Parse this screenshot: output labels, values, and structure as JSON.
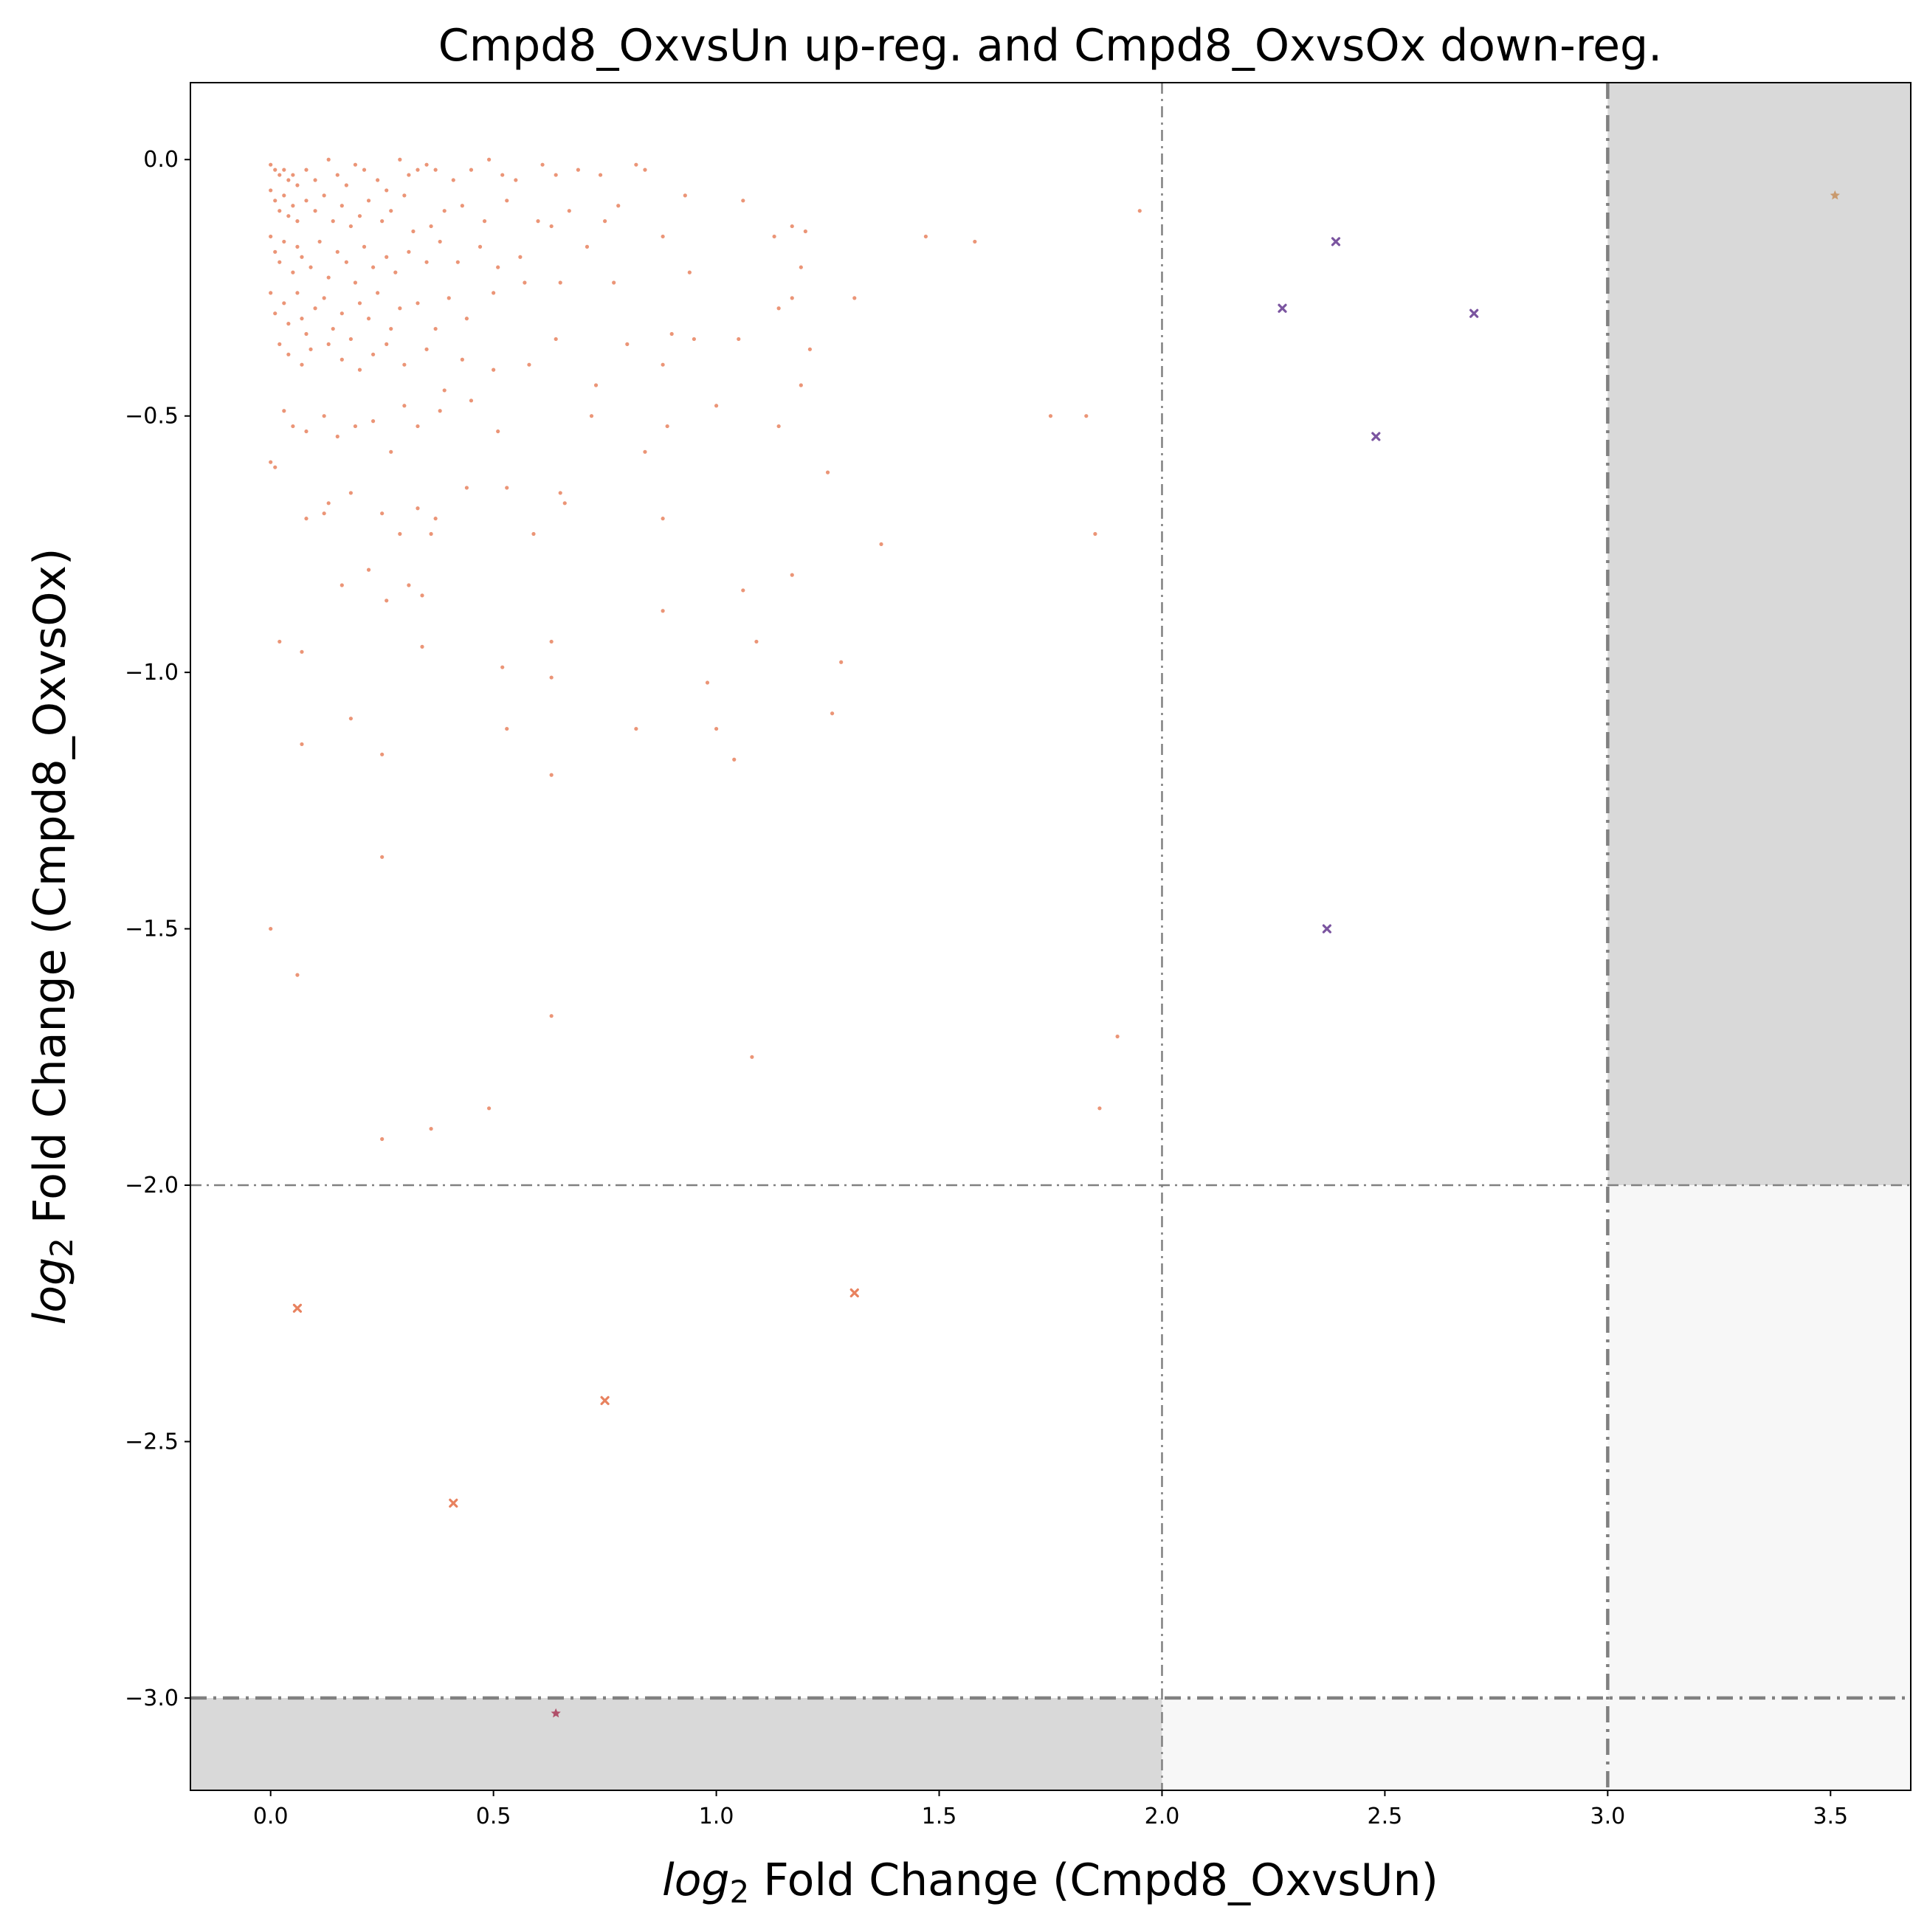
{
  "chart_data": {
    "type": "scatter",
    "title": "Cmpd8_OxvsUn up-reg. and Cmpd8_OxvsOx down-reg.",
    "xlabel_prefix": "log",
    "xlabel_sub": "2",
    "xlabel_rest": " Fold Change (Cmpd8_OxvsUn)",
    "ylabel_prefix": "log",
    "ylabel_sub": "2",
    "ylabel_rest": " Fold Change (Cmpd8_OxvsOx)",
    "xlim": [
      -0.18,
      3.68
    ],
    "ylim": [
      -3.18,
      0.15
    ],
    "xticks": [
      0.0,
      0.5,
      1.0,
      1.5,
      2.0,
      2.5,
      3.0,
      3.5
    ],
    "xtick_labels": [
      "0.0",
      "0.5",
      "1.0",
      "1.5",
      "2.0",
      "2.5",
      "3.0",
      "3.5"
    ],
    "yticks": [
      0.0,
      -0.5,
      -1.0,
      -1.5,
      -2.0,
      -2.5,
      -3.0
    ],
    "ytick_labels": [
      "0.0",
      "−0.5",
      "−1.0",
      "−1.5",
      "−2.0",
      "−2.5",
      "−3.0"
    ],
    "grid": false,
    "legend": "none",
    "colors": {
      "base_points": "#e8825f",
      "purple_marks": "#7b55a0",
      "orange_marks": "#e8825f",
      "star_low": "#b0506a",
      "star_high": "#c99a6e",
      "shade_dark": "#d9d9d9",
      "shade_light": "#f7f7f7",
      "threshold_lines": "#808080"
    },
    "shaded_regions": [
      {
        "x": [
          3.0,
          3.68
        ],
        "y": [
          -2.0,
          0.15
        ],
        "shade": "dark"
      },
      {
        "x": [
          3.0,
          3.68
        ],
        "y": [
          -3.18,
          -2.0
        ],
        "shade": "light"
      },
      {
        "x": [
          2.0,
          3.0
        ],
        "y": [
          -3.18,
          -3.0
        ],
        "shade": "light"
      },
      {
        "x": [
          -0.18,
          2.0
        ],
        "y": [
          -3.18,
          -3.0
        ],
        "shade": "dark"
      }
    ],
    "threshold_lines": [
      {
        "orientation": "vertical",
        "value": 2.0,
        "weight": "thin"
      },
      {
        "orientation": "vertical",
        "value": 3.0,
        "weight": "thick"
      },
      {
        "orientation": "horizontal",
        "value": -2.0,
        "weight": "thin"
      },
      {
        "orientation": "horizontal",
        "value": -3.0,
        "weight": "thick"
      }
    ],
    "series": [
      {
        "marker": "dot",
        "color_key": "base_points",
        "points": [
          [
            0.0,
            -0.01
          ],
          [
            0.01,
            -0.02
          ],
          [
            0.02,
            -0.03
          ],
          [
            0.03,
            -0.02
          ],
          [
            0.04,
            -0.04
          ],
          [
            0.05,
            -0.03
          ],
          [
            0.06,
            -0.05
          ],
          [
            0.08,
            -0.02
          ],
          [
            0.1,
            -0.04
          ],
          [
            0.13,
            0.0
          ],
          [
            0.15,
            -0.03
          ],
          [
            0.17,
            -0.05
          ],
          [
            0.19,
            -0.01
          ],
          [
            0.21,
            -0.02
          ],
          [
            0.24,
            -0.04
          ],
          [
            0.26,
            -0.06
          ],
          [
            0.29,
            0.0
          ],
          [
            0.31,
            -0.03
          ],
          [
            0.33,
            -0.02
          ],
          [
            0.35,
            -0.01
          ],
          [
            0.37,
            -0.02
          ],
          [
            0.41,
            -0.04
          ],
          [
            0.45,
            -0.02
          ],
          [
            0.49,
            0.0
          ],
          [
            0.52,
            -0.03
          ],
          [
            0.55,
            -0.04
          ],
          [
            0.61,
            -0.01
          ],
          [
            0.64,
            -0.03
          ],
          [
            0.69,
            -0.02
          ],
          [
            0.74,
            -0.03
          ],
          [
            0.82,
            -0.01
          ],
          [
            0.84,
            -0.02
          ],
          [
            0.0,
            -0.06
          ],
          [
            0.01,
            -0.08
          ],
          [
            0.02,
            -0.1
          ],
          [
            0.03,
            -0.07
          ],
          [
            0.04,
            -0.11
          ],
          [
            0.05,
            -0.09
          ],
          [
            0.06,
            -0.12
          ],
          [
            0.08,
            -0.08
          ],
          [
            0.1,
            -0.1
          ],
          [
            0.12,
            -0.07
          ],
          [
            0.14,
            -0.12
          ],
          [
            0.16,
            -0.09
          ],
          [
            0.18,
            -0.13
          ],
          [
            0.2,
            -0.11
          ],
          [
            0.22,
            -0.08
          ],
          [
            0.25,
            -0.12
          ],
          [
            0.27,
            -0.1
          ],
          [
            0.3,
            -0.07
          ],
          [
            0.32,
            -0.14
          ],
          [
            0.36,
            -0.13
          ],
          [
            0.39,
            -0.1
          ],
          [
            0.43,
            -0.09
          ],
          [
            0.48,
            -0.12
          ],
          [
            0.53,
            -0.08
          ],
          [
            0.6,
            -0.12
          ],
          [
            0.63,
            -0.13
          ],
          [
            0.67,
            -0.1
          ],
          [
            0.75,
            -0.12
          ],
          [
            0.78,
            -0.09
          ],
          [
            0.93,
            -0.07
          ],
          [
            1.06,
            -0.08
          ],
          [
            1.17,
            -0.13
          ],
          [
            1.2,
            -0.14
          ],
          [
            1.13,
            -0.15
          ],
          [
            1.47,
            -0.15
          ],
          [
            1.58,
            -0.16
          ],
          [
            1.95,
            -0.1
          ],
          [
            0.0,
            -0.15
          ],
          [
            0.01,
            -0.18
          ],
          [
            0.02,
            -0.2
          ],
          [
            0.03,
            -0.16
          ],
          [
            0.05,
            -0.22
          ],
          [
            0.06,
            -0.17
          ],
          [
            0.07,
            -0.19
          ],
          [
            0.09,
            -0.21
          ],
          [
            0.11,
            -0.16
          ],
          [
            0.13,
            -0.23
          ],
          [
            0.15,
            -0.18
          ],
          [
            0.17,
            -0.2
          ],
          [
            0.19,
            -0.24
          ],
          [
            0.21,
            -0.17
          ],
          [
            0.23,
            -0.21
          ],
          [
            0.26,
            -0.19
          ],
          [
            0.28,
            -0.22
          ],
          [
            0.31,
            -0.18
          ],
          [
            0.35,
            -0.2
          ],
          [
            0.38,
            -0.16
          ],
          [
            0.42,
            -0.2
          ],
          [
            0.47,
            -0.17
          ],
          [
            0.51,
            -0.21
          ],
          [
            0.56,
            -0.19
          ],
          [
            0.71,
            -0.17
          ],
          [
            0.88,
            -0.15
          ],
          [
            0.94,
            -0.22
          ],
          [
            1.19,
            -0.21
          ],
          [
            0.0,
            -0.26
          ],
          [
            0.01,
            -0.3
          ],
          [
            0.03,
            -0.28
          ],
          [
            0.04,
            -0.32
          ],
          [
            0.06,
            -0.26
          ],
          [
            0.07,
            -0.31
          ],
          [
            0.08,
            -0.34
          ],
          [
            0.1,
            -0.29
          ],
          [
            0.12,
            -0.27
          ],
          [
            0.14,
            -0.33
          ],
          [
            0.16,
            -0.3
          ],
          [
            0.18,
            -0.35
          ],
          [
            0.2,
            -0.28
          ],
          [
            0.22,
            -0.31
          ],
          [
            0.24,
            -0.26
          ],
          [
            0.27,
            -0.33
          ],
          [
            0.29,
            -0.29
          ],
          [
            0.33,
            -0.28
          ],
          [
            0.37,
            -0.33
          ],
          [
            0.4,
            -0.27
          ],
          [
            0.44,
            -0.31
          ],
          [
            0.5,
            -0.26
          ],
          [
            0.57,
            -0.24
          ],
          [
            0.65,
            -0.24
          ],
          [
            0.77,
            -0.24
          ],
          [
            0.9,
            -0.34
          ],
          [
            0.95,
            -0.35
          ],
          [
            1.05,
            -0.35
          ],
          [
            1.17,
            -0.27
          ],
          [
            1.31,
            -0.27
          ],
          [
            1.14,
            -0.29
          ],
          [
            1.21,
            -0.37
          ],
          [
            0.02,
            -0.36
          ],
          [
            0.04,
            -0.38
          ],
          [
            0.07,
            -0.4
          ],
          [
            0.09,
            -0.37
          ],
          [
            0.13,
            -0.36
          ],
          [
            0.16,
            -0.39
          ],
          [
            0.2,
            -0.41
          ],
          [
            0.23,
            -0.38
          ],
          [
            0.26,
            -0.36
          ],
          [
            0.3,
            -0.4
          ],
          [
            0.35,
            -0.37
          ],
          [
            0.39,
            -0.45
          ],
          [
            0.43,
            -0.39
          ],
          [
            0.5,
            -0.41
          ],
          [
            0.58,
            -0.4
          ],
          [
            0.64,
            -0.35
          ],
          [
            0.73,
            -0.44
          ],
          [
            0.8,
            -0.36
          ],
          [
            0.88,
            -0.4
          ],
          [
            1.0,
            -0.48
          ],
          [
            1.19,
            -0.44
          ],
          [
            0.0,
            -0.59
          ],
          [
            0.01,
            -0.6
          ],
          [
            0.03,
            -0.49
          ],
          [
            0.05,
            -0.52
          ],
          [
            0.08,
            -0.53
          ],
          [
            0.12,
            -0.5
          ],
          [
            0.15,
            -0.54
          ],
          [
            0.19,
            -0.52
          ],
          [
            0.23,
            -0.51
          ],
          [
            0.27,
            -0.57
          ],
          [
            0.3,
            -0.48
          ],
          [
            0.33,
            -0.52
          ],
          [
            0.38,
            -0.49
          ],
          [
            0.45,
            -0.47
          ],
          [
            0.51,
            -0.53
          ],
          [
            0.72,
            -0.5
          ],
          [
            0.89,
            -0.52
          ],
          [
            0.84,
            -0.57
          ],
          [
            1.14,
            -0.52
          ],
          [
            1.25,
            -0.61
          ],
          [
            1.75,
            -0.5
          ],
          [
            1.83,
            -0.5
          ],
          [
            0.08,
            -0.7
          ],
          [
            0.12,
            -0.69
          ],
          [
            0.13,
            -0.67
          ],
          [
            0.18,
            -0.65
          ],
          [
            0.25,
            -0.69
          ],
          [
            0.29,
            -0.73
          ],
          [
            0.33,
            -0.68
          ],
          [
            0.37,
            -0.7
          ],
          [
            0.36,
            -0.73
          ],
          [
            0.44,
            -0.64
          ],
          [
            0.53,
            -0.64
          ],
          [
            0.59,
            -0.73
          ],
          [
            0.65,
            -0.65
          ],
          [
            0.66,
            -0.67
          ],
          [
            0.88,
            -0.7
          ],
          [
            1.37,
            -0.75
          ],
          [
            1.85,
            -0.73
          ],
          [
            0.16,
            -0.83
          ],
          [
            0.22,
            -0.8
          ],
          [
            0.26,
            -0.86
          ],
          [
            0.31,
            -0.83
          ],
          [
            0.34,
            -0.85
          ],
          [
            1.06,
            -0.84
          ],
          [
            1.17,
            -0.81
          ],
          [
            0.88,
            -0.88
          ],
          [
            1.09,
            -0.94
          ],
          [
            0.02,
            -0.94
          ],
          [
            0.07,
            -0.96
          ],
          [
            0.34,
            -0.95
          ],
          [
            0.63,
            -0.94
          ],
          [
            0.63,
            -1.01
          ],
          [
            0.52,
            -0.99
          ],
          [
            0.98,
            -1.02
          ],
          [
            1.28,
            -0.98
          ],
          [
            0.07,
            -1.14
          ],
          [
            0.18,
            -1.09
          ],
          [
            0.25,
            -1.16
          ],
          [
            0.53,
            -1.11
          ],
          [
            0.82,
            -1.11
          ],
          [
            1.0,
            -1.11
          ],
          [
            1.04,
            -1.17
          ],
          [
            1.26,
            -1.08
          ],
          [
            0.63,
            -1.2
          ],
          [
            0.25,
            -1.36
          ],
          [
            0.0,
            -1.5
          ],
          [
            0.06,
            -1.59
          ],
          [
            0.63,
            -1.67
          ],
          [
            1.08,
            -1.75
          ],
          [
            1.9,
            -1.71
          ],
          [
            0.25,
            -1.91
          ],
          [
            0.36,
            -1.89
          ],
          [
            0.49,
            -1.85
          ],
          [
            1.86,
            -1.85
          ]
        ]
      },
      {
        "marker": "x",
        "color_key": "purple_marks",
        "points": [
          [
            2.39,
            -0.16
          ],
          [
            2.27,
            -0.29
          ],
          [
            2.7,
            -0.3
          ],
          [
            2.48,
            -0.54
          ],
          [
            2.37,
            -1.5
          ]
        ]
      },
      {
        "marker": "x",
        "color_key": "orange_marks",
        "points": [
          [
            0.06,
            -2.24
          ],
          [
            1.31,
            -2.21
          ],
          [
            0.75,
            -2.42
          ],
          [
            0.41,
            -2.62
          ]
        ]
      },
      {
        "marker": "star",
        "color_key": "star_low",
        "points": [
          [
            0.64,
            -3.03
          ]
        ]
      },
      {
        "marker": "star",
        "color_key": "star_high",
        "points": [
          [
            3.51,
            -0.07
          ]
        ]
      }
    ]
  }
}
